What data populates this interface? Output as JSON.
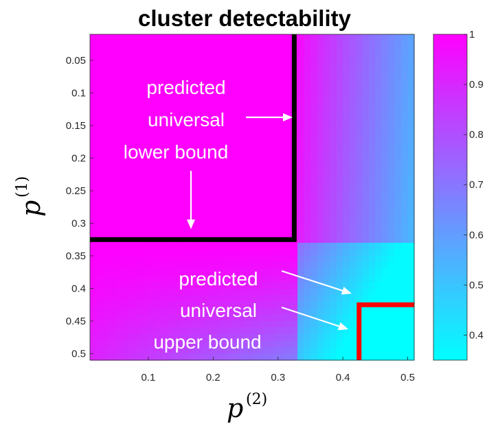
{
  "chart_data": {
    "type": "heatmap",
    "title": "cluster detectability",
    "xlabel": {
      "var": "p",
      "sup": "(2)"
    },
    "ylabel": {
      "var": "p",
      "sup": "(1)"
    },
    "x_range": [
      0.01,
      0.51
    ],
    "y_range": [
      0.01,
      0.51
    ],
    "y_reversed": true,
    "x_ticks": [
      "0.1",
      "0.2",
      "0.3",
      "0.4",
      "0.5"
    ],
    "y_ticks": [
      "0.05",
      "0.1",
      "0.15",
      "0.2",
      "0.25",
      "0.3",
      "0.35",
      "0.4",
      "0.45",
      "0.5"
    ],
    "grid": false,
    "colorbar": {
      "range": [
        0.35,
        1
      ],
      "ticks": [
        "0.4",
        "0.5",
        "0.6",
        "0.7",
        "0.8",
        "0.9",
        "1"
      ],
      "colormap": "cool",
      "low_color": "#00ffff",
      "high_color": "#ff00ff"
    },
    "regions": {
      "lower_bound_region": {
        "x_max": 0.325,
        "y_max": 0.325,
        "value": 1.0
      },
      "upper_bound_region": {
        "x_min": 0.425,
        "y_min": 0.425,
        "value": 0.35
      }
    },
    "boundaries": {
      "lower_bound": {
        "x": 0.325,
        "y": 0.325,
        "color": "#000000"
      },
      "upper_bound": {
        "x": 0.425,
        "y": 0.425,
        "color": "#ff0000"
      }
    },
    "annotations": {
      "lower": {
        "lines": [
          "predicted",
          "universal",
          "lower bound"
        ]
      },
      "upper": {
        "lines": [
          "predicted",
          "universal",
          "upper bound"
        ]
      }
    }
  }
}
